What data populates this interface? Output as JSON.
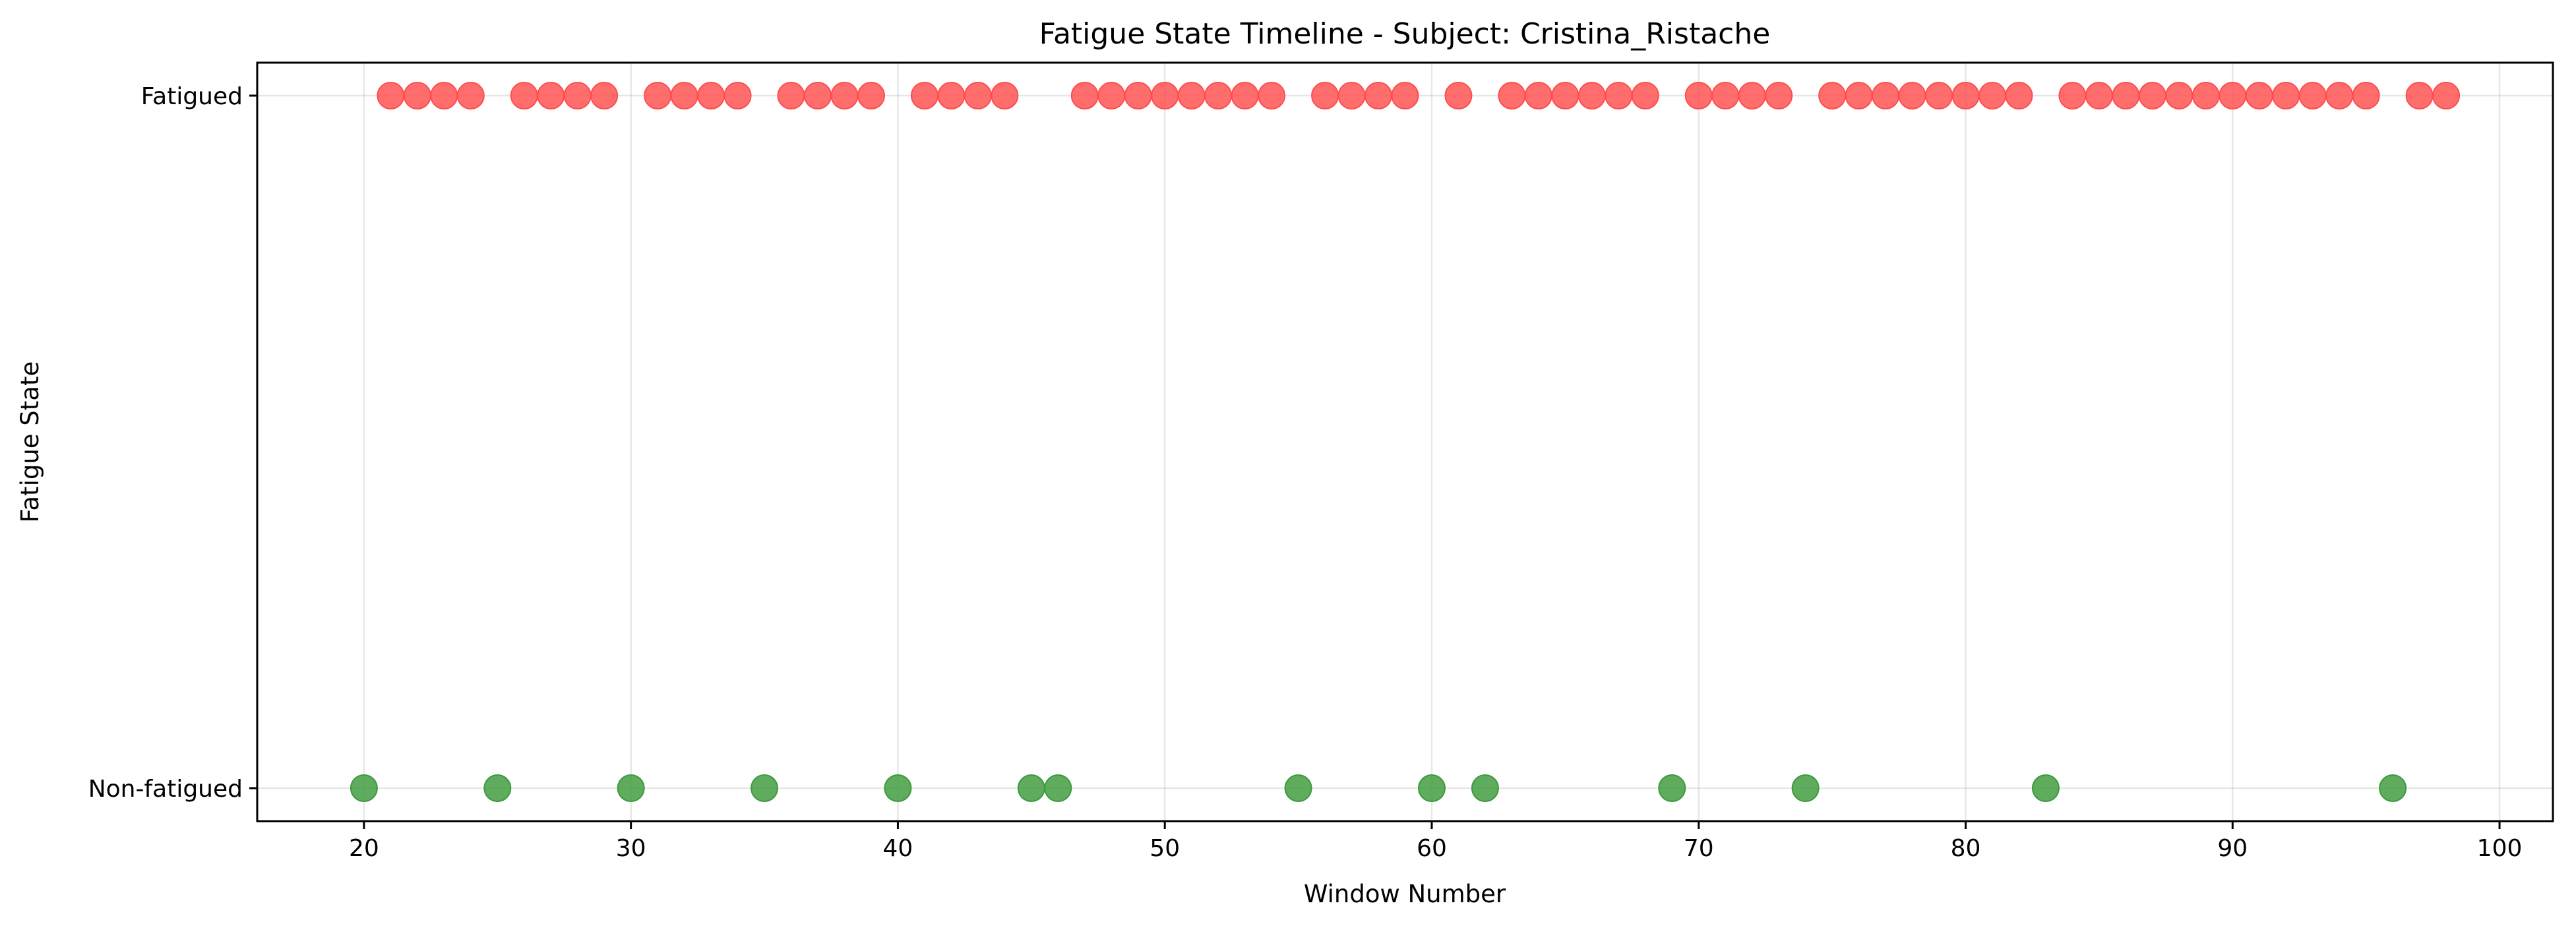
{
  "chart_data": {
    "type": "scatter",
    "title": "Fatigue State Timeline - Subject: Cristina_Ristache",
    "xlabel": "Window Number",
    "ylabel": "Fatigue State",
    "xlim": [
      16,
      102
    ],
    "xticks": [
      20,
      30,
      40,
      50,
      60,
      70,
      80,
      90,
      100
    ],
    "y_categories": [
      "Non-fatigued",
      "Fatigued"
    ],
    "grid": true,
    "legend": "none",
    "series": [
      {
        "state": "Fatigued",
        "color": "#ff4d4d",
        "x": [
          21,
          22,
          23,
          24,
          26,
          27,
          28,
          29,
          31,
          32,
          33,
          34,
          36,
          37,
          38,
          39,
          41,
          42,
          43,
          44,
          47,
          48,
          49,
          50,
          51,
          52,
          53,
          54,
          56,
          57,
          58,
          59,
          61,
          63,
          64,
          65,
          66,
          67,
          68,
          70,
          71,
          72,
          73,
          75,
          76,
          77,
          78,
          79,
          80,
          81,
          82,
          84,
          85,
          86,
          87,
          88,
          89,
          90,
          91,
          92,
          93,
          94,
          95,
          97,
          98
        ]
      },
      {
        "state": "Non-fatigued",
        "color": "#3c9a3c",
        "x": [
          20,
          25,
          30,
          35,
          40,
          45,
          46,
          55,
          60,
          62,
          69,
          74,
          83,
          96
        ]
      }
    ]
  }
}
